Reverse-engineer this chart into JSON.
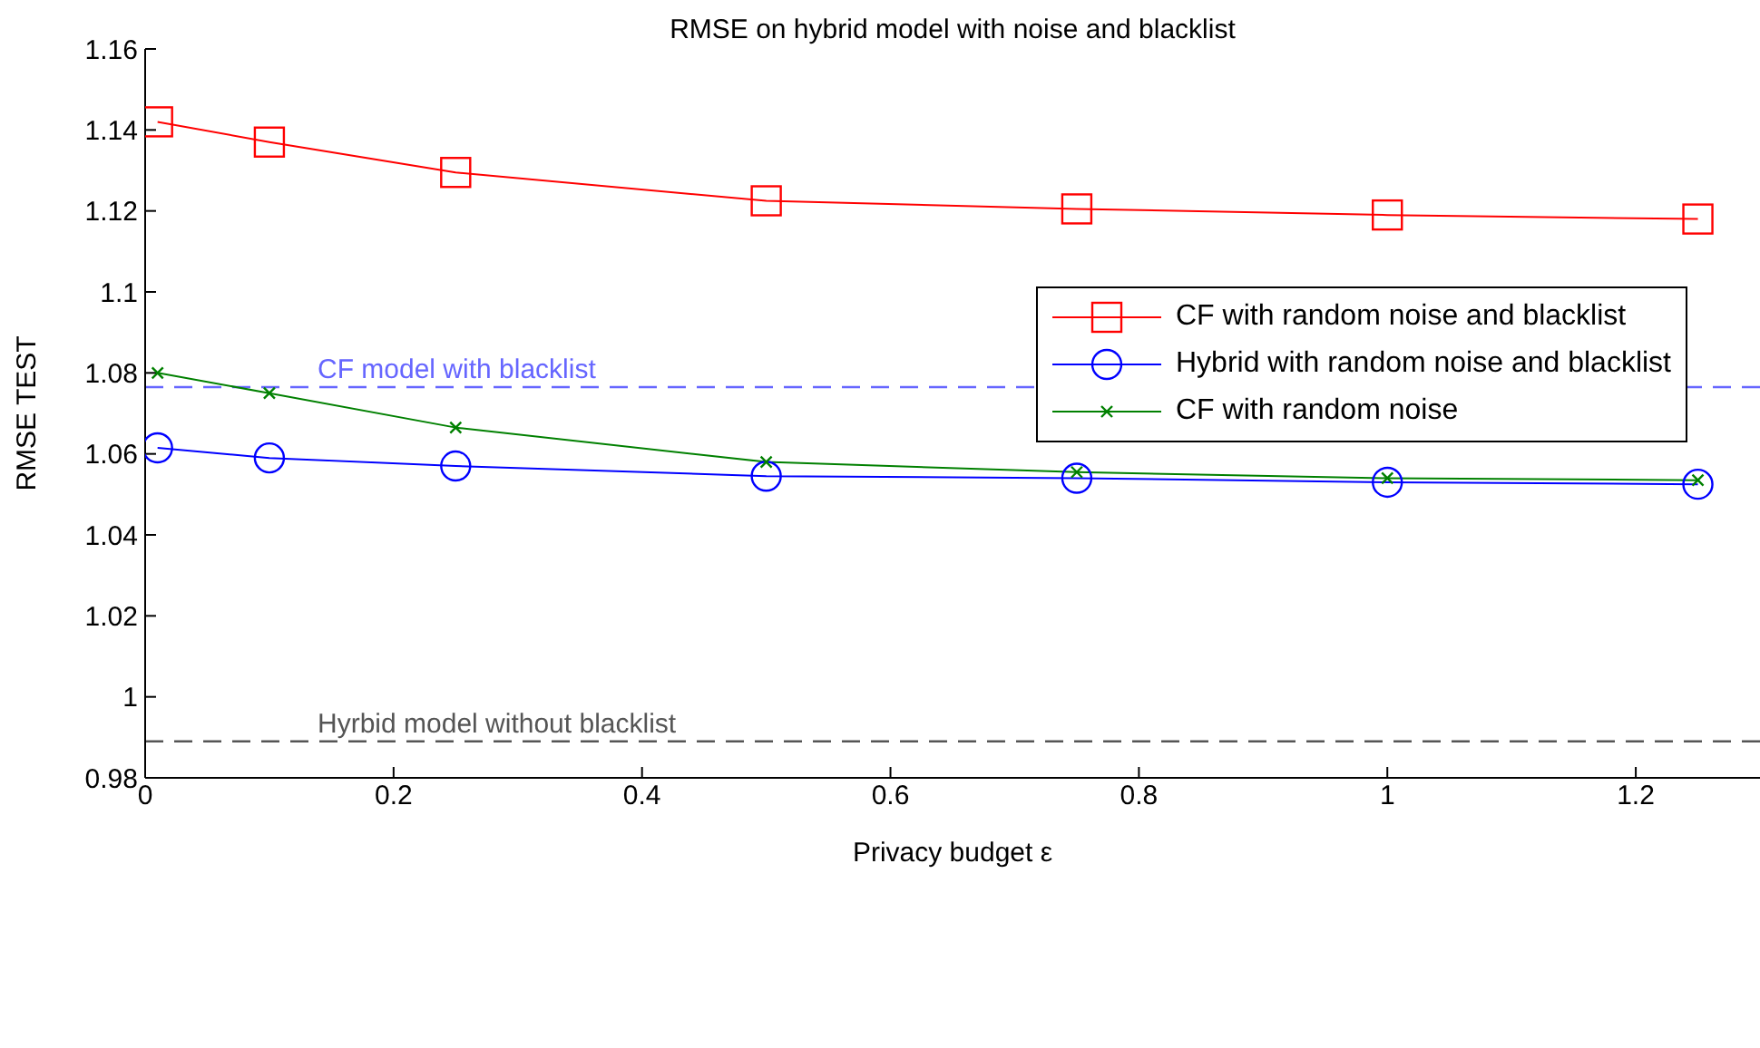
{
  "chart_data": {
    "type": "line",
    "title": "RMSE on hybrid model with noise and blacklist",
    "xlabel": "Privacy budget ε",
    "ylabel": "RMSE TEST",
    "x": [
      0.01,
      0.1,
      0.25,
      0.5,
      0.75,
      1,
      1.25
    ],
    "series": [
      {
        "name": "CF with random noise and blacklist",
        "color": "#ff0000",
        "marker": "square",
        "values": [
          1.142,
          1.137,
          1.1295,
          1.1225,
          1.1205,
          1.119,
          1.118
        ]
      },
      {
        "name": "Hybrid with random noise and blacklist",
        "color": "#0000ff",
        "marker": "circle",
        "values": [
          1.0615,
          1.059,
          1.057,
          1.0545,
          1.054,
          1.053,
          1.0525
        ]
      },
      {
        "name": "CF with random noise",
        "color": "#008000",
        "marker": "cross",
        "values": [
          1.08,
          1.075,
          1.0665,
          1.058,
          1.0555,
          1.054,
          1.0535
        ]
      }
    ],
    "xlim": [
      0,
      1.3
    ],
    "xticks": [
      0,
      0.2,
      0.4,
      0.6,
      0.8,
      1,
      1.2
    ],
    "ylim": [
      0.98,
      1.16
    ],
    "yticks": [
      0.98,
      1,
      1.02,
      1.04,
      1.06,
      1.08,
      1.1,
      1.12,
      1.14,
      1.16
    ],
    "ref_lines": [
      {
        "axis": "y",
        "value": 1.0765,
        "label": "CF model with blacklist",
        "color": "#6666ff",
        "line_style": "dashed"
      },
      {
        "axis": "y",
        "value": 0.989,
        "label": "Hyrbid model without blacklist",
        "color": "#555555",
        "line_style": "dashed"
      }
    ],
    "legend": "top right",
    "line_style": "solid"
  }
}
